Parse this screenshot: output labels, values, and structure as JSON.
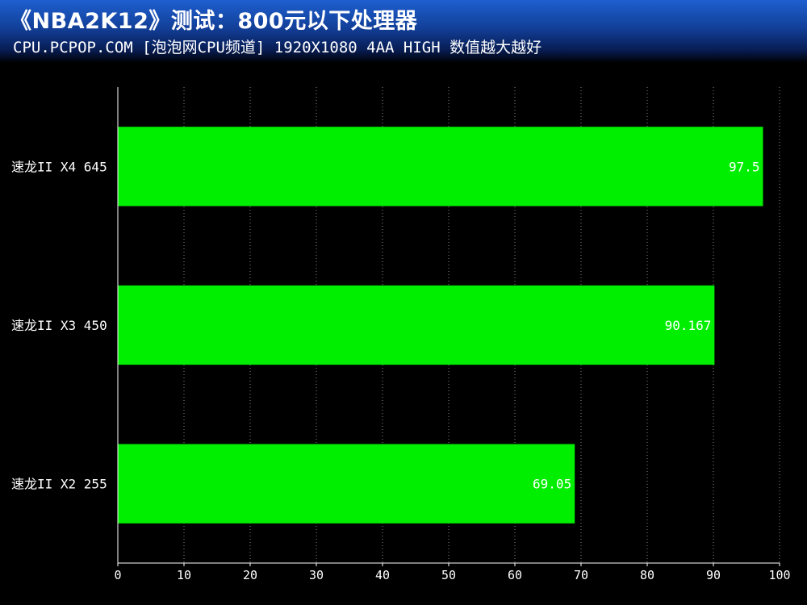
{
  "header": {
    "title": "《NBA2K12》测试：800元以下处理器",
    "subtitle": "CPU.PCPOP.COM [泡泡网CPU频道] 1920X1080 4AA HIGH 数值越大越好"
  },
  "colors": {
    "bar": "#00ee00",
    "background": "#000000",
    "text": "#ffffff"
  },
  "chart_data": {
    "type": "bar",
    "orientation": "horizontal",
    "title": "《NBA2K12》测试：800元以下处理器",
    "subtitle": "CPU.PCPOP.COM [泡泡网CPU频道] 1920X1080 4AA HIGH 数值越大越好",
    "categories": [
      "速龙II X4 645",
      "速龙II X3 450",
      "速龙II X2 255"
    ],
    "values": [
      97.5,
      90.167,
      69.05
    ],
    "value_labels": [
      "97.5",
      "90.167",
      "69.05"
    ],
    "xlim": [
      0,
      100
    ],
    "xticks": [
      0,
      10,
      20,
      30,
      40,
      50,
      60,
      70,
      80,
      90,
      100
    ],
    "grid": true,
    "xlabel": "",
    "ylabel": ""
  }
}
